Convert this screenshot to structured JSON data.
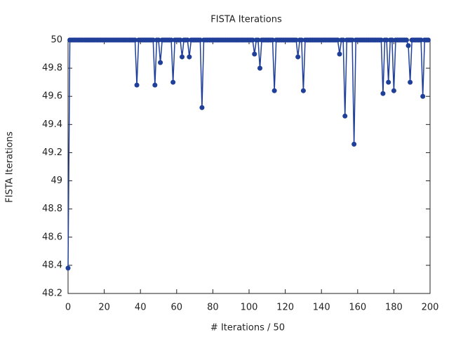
{
  "chart_data": {
    "type": "line",
    "title": "FISTA Iterations",
    "x_label": "# Iterations / 50",
    "y_label": "FISTA Iterations",
    "x": [
      0,
      1,
      2,
      3,
      4,
      5,
      6,
      7,
      8,
      9,
      10,
      11,
      12,
      13,
      14,
      15,
      16,
      17,
      18,
      19,
      20,
      21,
      22,
      23,
      24,
      25,
      26,
      27,
      28,
      29,
      30,
      31,
      32,
      33,
      34,
      35,
      36,
      37,
      38,
      39,
      40,
      41,
      42,
      43,
      44,
      45,
      46,
      47,
      48,
      49,
      50,
      51,
      52,
      53,
      54,
      55,
      56,
      57,
      58,
      59,
      60,
      61,
      62,
      63,
      64,
      65,
      66,
      67,
      68,
      69,
      70,
      71,
      72,
      73,
      74,
      75,
      76,
      77,
      78,
      79,
      80,
      81,
      82,
      83,
      84,
      85,
      86,
      87,
      88,
      89,
      90,
      91,
      92,
      93,
      94,
      95,
      96,
      97,
      98,
      99,
      100,
      101,
      102,
      103,
      104,
      105,
      106,
      107,
      108,
      109,
      110,
      111,
      112,
      113,
      114,
      115,
      116,
      117,
      118,
      119,
      120,
      121,
      122,
      123,
      124,
      125,
      126,
      127,
      128,
      129,
      130,
      131,
      132,
      133,
      134,
      135,
      136,
      137,
      138,
      139,
      140,
      141,
      142,
      143,
      144,
      145,
      146,
      147,
      148,
      149,
      150,
      151,
      152,
      153,
      154,
      155,
      156,
      157,
      158,
      159,
      160,
      161,
      162,
      163,
      164,
      165,
      166,
      167,
      168,
      169,
      170,
      171,
      172,
      173,
      174,
      175,
      176,
      177,
      178,
      179,
      180,
      181,
      182,
      183,
      184,
      185,
      186,
      187,
      188,
      189,
      190,
      191,
      192,
      193,
      194,
      195,
      196,
      197,
      198,
      199
    ],
    "values": [
      48.38,
      50,
      50,
      50,
      50,
      50,
      50,
      50,
      50,
      50,
      50,
      50,
      50,
      50,
      50,
      50,
      50,
      50,
      50,
      50,
      50,
      50,
      50,
      50,
      50,
      50,
      50,
      50,
      50,
      50,
      50,
      50,
      50,
      50,
      50,
      50,
      50,
      50,
      49.68,
      50,
      50,
      50,
      50,
      50,
      50,
      50,
      50,
      50,
      49.68,
      50,
      50,
      49.84,
      50,
      50,
      50,
      50,
      50,
      50,
      49.7,
      50,
      50,
      50,
      50,
      49.88,
      50,
      50,
      50,
      49.88,
      50,
      50,
      50,
      50,
      50,
      50,
      49.52,
      50,
      50,
      50,
      50,
      50,
      50,
      50,
      50,
      50,
      50,
      50,
      50,
      50,
      50,
      50,
      50,
      50,
      50,
      50,
      50,
      50,
      50,
      50,
      50,
      50,
      50,
      50,
      50,
      49.9,
      50,
      50,
      49.8,
      50,
      50,
      50,
      50,
      50,
      50,
      50,
      49.64,
      50,
      50,
      50,
      50,
      50,
      50,
      50,
      50,
      50,
      50,
      50,
      50,
      49.88,
      50,
      50,
      49.64,
      50,
      50,
      50,
      50,
      50,
      50,
      50,
      50,
      50,
      50,
      50,
      50,
      50,
      50,
      50,
      50,
      50,
      50,
      50,
      49.9,
      50,
      50,
      49.46,
      50,
      50,
      50,
      50,
      49.26,
      50,
      50,
      50,
      50,
      50,
      50,
      50,
      50,
      50,
      50,
      50,
      50,
      50,
      50,
      50,
      49.62,
      50,
      50,
      49.7,
      50,
      50,
      49.64,
      50,
      50,
      50,
      50,
      50,
      50,
      50,
      49.96,
      49.7,
      50,
      50,
      50,
      50,
      50,
      50,
      49.6,
      50,
      50,
      50
    ],
    "color": "#1f3f99",
    "xlim": [
      0,
      200
    ],
    "xticks": [
      0,
      20,
      40,
      60,
      80,
      100,
      120,
      140,
      160,
      180,
      200
    ],
    "ylim": [
      48.2,
      50
    ],
    "yticks": [
      48.2,
      48.4,
      48.6,
      48.8,
      49,
      49.2,
      49.4,
      49.6,
      49.8,
      50
    ],
    "grid": false
  }
}
